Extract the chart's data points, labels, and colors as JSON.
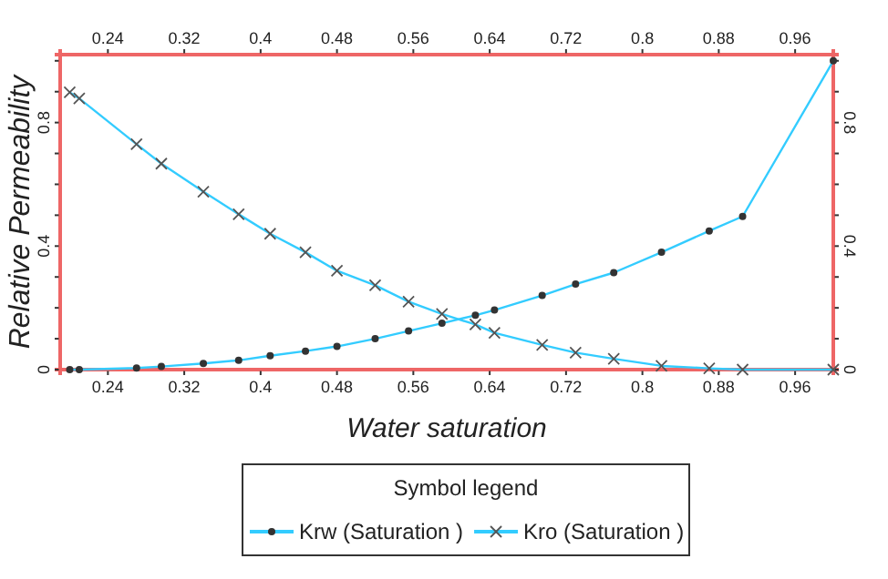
{
  "chart_data": {
    "type": "line",
    "xlabel": "Water saturation",
    "ylabel": "Relative Permeability",
    "legend_title": "Symbol legend",
    "legend": "bottom",
    "grid": false,
    "xlim": [
      0.19,
      1.0
    ],
    "ylim": [
      0,
      1.02
    ],
    "xticks": [
      0.24,
      0.32,
      0.4,
      0.48,
      0.56,
      0.64,
      0.72,
      0.8,
      0.88,
      0.96
    ],
    "x2lim": [
      0.19,
      1.0
    ],
    "x2ticks": [
      0.24,
      0.32,
      0.4,
      0.48,
      0.56,
      0.64,
      0.72,
      0.8,
      0.88,
      0.96
    ],
    "yticks": [
      0,
      {
        "value": 0.1,
        "label": null
      },
      {
        "value": 0.2,
        "label": null
      },
      {
        "value": 0.3,
        "label": null
      },
      0.4,
      {
        "value": 0.5,
        "label": null
      },
      {
        "value": 0.6,
        "label": null
      },
      {
        "value": 0.7,
        "label": null
      },
      0.8,
      {
        "value": 0.9,
        "label": null
      },
      {
        "value": 1.0,
        "label": null
      }
    ],
    "y2lim": [
      0,
      1.02
    ],
    "y2ticks": [
      0,
      {
        "value": 0.1,
        "label": null
      },
      {
        "value": 0.2,
        "label": null
      },
      {
        "value": 0.3,
        "label": null
      },
      0.4,
      {
        "value": 0.5,
        "label": null
      },
      {
        "value": 0.6,
        "label": null
      },
      {
        "value": 0.7,
        "label": null
      },
      0.8,
      {
        "value": 0.9,
        "label": null
      },
      {
        "value": 1.0,
        "label": null
      }
    ],
    "series": [
      {
        "name": "Krw (Saturation )",
        "color": "#33ccff",
        "marker": "circle",
        "x": [
          0.2,
          0.21,
          0.27,
          0.296,
          0.34,
          0.377,
          0.41,
          0.447,
          0.48,
          0.52,
          0.555,
          0.59,
          0.625,
          0.645,
          0.695,
          0.73,
          0.77,
          0.82,
          0.87,
          0.905,
          1.0
        ],
        "values": [
          0,
          0,
          0.005,
          0.01,
          0.02,
          0.03,
          0.045,
          0.06,
          0.075,
          0.1,
          0.125,
          0.15,
          0.176,
          0.193,
          0.24,
          0.277,
          0.314,
          0.38,
          0.449,
          0.496,
          1.0
        ]
      },
      {
        "name": "Kro (Saturation )",
        "color": "#33ccff",
        "marker": "cross",
        "x": [
          0.2,
          0.21,
          0.27,
          0.296,
          0.34,
          0.377,
          0.41,
          0.447,
          0.48,
          0.52,
          0.555,
          0.59,
          0.625,
          0.645,
          0.695,
          0.73,
          0.77,
          0.82,
          0.87,
          0.905,
          1.0
        ],
        "values": [
          0.898,
          0.878,
          0.73,
          0.667,
          0.576,
          0.503,
          0.44,
          0.38,
          0.32,
          0.273,
          0.22,
          0.18,
          0.146,
          0.119,
          0.08,
          0.055,
          0.035,
          0.012,
          0.004,
          0,
          0
        ]
      }
    ]
  }
}
